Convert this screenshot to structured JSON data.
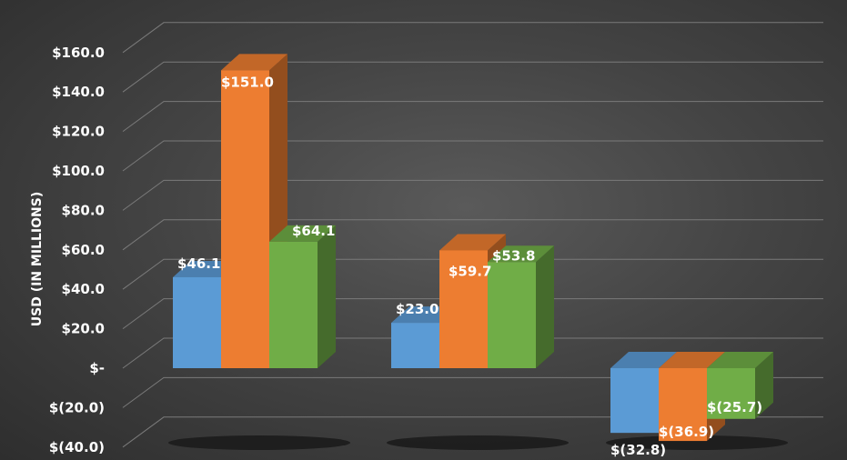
{
  "chart_data": {
    "type": "bar",
    "title": "",
    "ylabel": "USD (IN MILLIONS)",
    "xlabel": "",
    "ylim": [
      -40,
      160
    ],
    "y_ticks": [
      {
        "value": 160,
        "label": "$160.0"
      },
      {
        "value": 140,
        "label": "$140.0"
      },
      {
        "value": 120,
        "label": "$120.0"
      },
      {
        "value": 100,
        "label": "$100.0"
      },
      {
        "value": 80,
        "label": "$80.0"
      },
      {
        "value": 60,
        "label": "$60.0"
      },
      {
        "value": 40,
        "label": "$40.0"
      },
      {
        "value": 20,
        "label": "$20.0"
      },
      {
        "value": 0,
        "label": "$-"
      },
      {
        "value": -20,
        "label": "$(20.0)"
      },
      {
        "value": -40,
        "label": "$(40.0)"
      }
    ],
    "categories": [
      "",
      "",
      ""
    ],
    "series": [
      {
        "color": "#5b9bd5",
        "values": [
          46.1,
          23.0,
          -32.8
        ],
        "labels": [
          "$46.1",
          "$23.0",
          "$(32.8)"
        ]
      },
      {
        "color": "#ed7d31",
        "values": [
          151.0,
          59.7,
          -36.9
        ],
        "labels": [
          "$151.0",
          "$59.7",
          "$(36.9)"
        ]
      },
      {
        "color": "#70ad47",
        "values": [
          64.1,
          53.8,
          -25.7
        ],
        "labels": [
          "$64.1",
          "$53.8",
          "$(25.7)"
        ]
      }
    ],
    "grid": true,
    "legend": "none",
    "style": "3d-column"
  }
}
